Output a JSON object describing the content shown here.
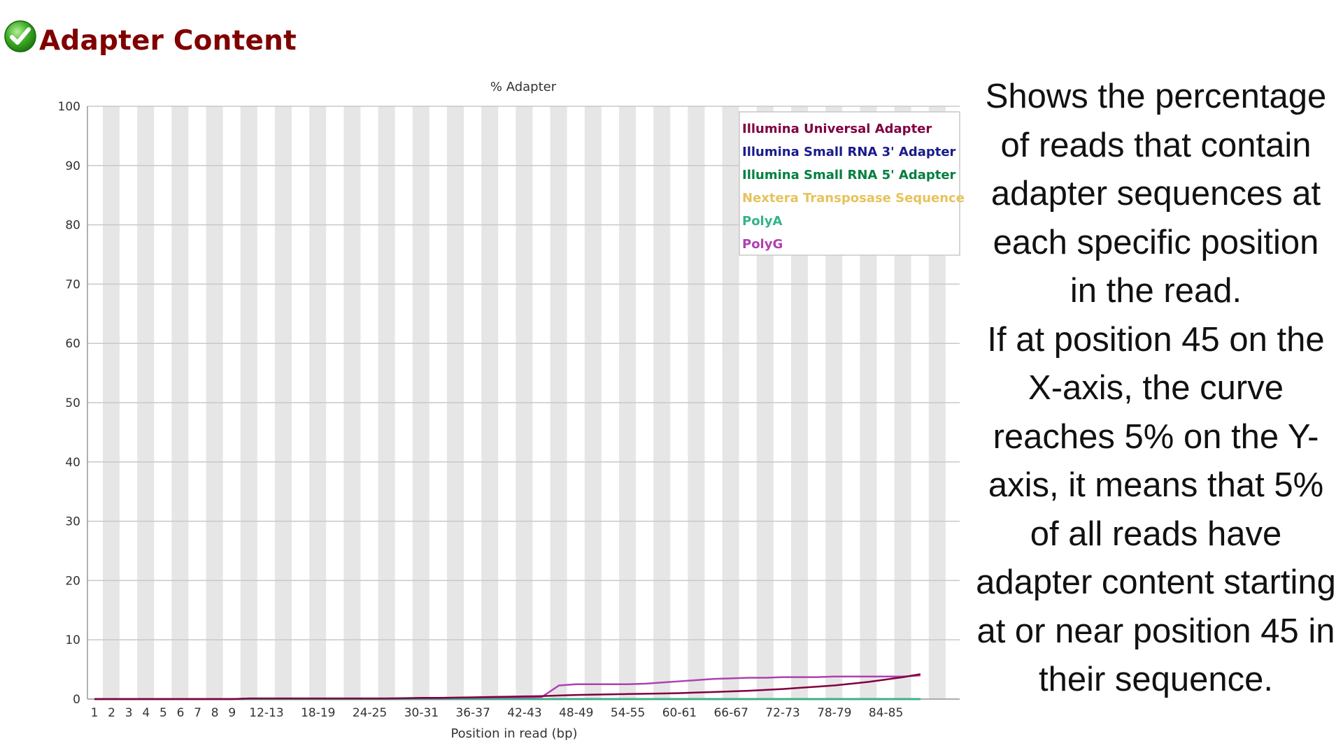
{
  "header": {
    "status_icon": "check-circle-icon",
    "title": "Adapter Content"
  },
  "chart_data": {
    "type": "line",
    "title": "% Adapter",
    "xlabel": "Position in read (bp)",
    "ylabel": "",
    "ylim": [
      0,
      100
    ],
    "yticks": [
      0,
      10,
      20,
      30,
      40,
      50,
      60,
      70,
      80,
      90,
      100
    ],
    "grid": true,
    "legend_position": "top-right",
    "categories": [
      "1",
      "2",
      "3",
      "4",
      "5",
      "6",
      "7",
      "8",
      "9",
      "10-11",
      "12-13",
      "14-15",
      "16-17",
      "18-19",
      "20-21",
      "22-23",
      "24-25",
      "26-27",
      "28-29",
      "30-31",
      "32-33",
      "34-35",
      "36-37",
      "38-39",
      "40-41",
      "42-43",
      "44-45",
      "46-47",
      "48-49",
      "50-51",
      "52-53",
      "54-55",
      "56-57",
      "58-59",
      "60-61",
      "62-63",
      "64-65",
      "66-67",
      "68-69",
      "70-71",
      "72-73",
      "74-75",
      "76-77",
      "78-79",
      "80-81",
      "82-83",
      "84-85",
      "86-87",
      "88-89"
    ],
    "xtick_labels": [
      "1",
      "2",
      "3",
      "4",
      "5",
      "6",
      "7",
      "8",
      "9",
      "12-13",
      "18-19",
      "24-25",
      "30-31",
      "36-37",
      "42-43",
      "48-49",
      "54-55",
      "60-61",
      "66-67",
      "72-73",
      "78-79",
      "84-85"
    ],
    "series": [
      {
        "name": "Illumina Universal Adapter",
        "color": "#800040",
        "values": [
          0,
          0,
          0,
          0,
          0,
          0,
          0,
          0,
          0,
          0.1,
          0.1,
          0.1,
          0.1,
          0.1,
          0.1,
          0.1,
          0.1,
          0.1,
          0.15,
          0.2,
          0.2,
          0.25,
          0.3,
          0.35,
          0.4,
          0.45,
          0.5,
          0.6,
          0.7,
          0.75,
          0.8,
          0.85,
          0.9,
          0.95,
          1.0,
          1.1,
          1.2,
          1.3,
          1.4,
          1.55,
          1.7,
          1.9,
          2.1,
          2.3,
          2.6,
          2.9,
          3.3,
          3.7,
          4.2
        ]
      },
      {
        "name": "Illumina Small RNA 3' Adapter",
        "color": "#1a1a8c",
        "values": [
          0,
          0,
          0,
          0,
          0,
          0,
          0,
          0,
          0,
          0,
          0,
          0,
          0,
          0,
          0,
          0,
          0,
          0,
          0,
          0,
          0,
          0,
          0,
          0,
          0,
          0,
          0,
          0,
          0,
          0,
          0,
          0,
          0,
          0,
          0,
          0,
          0,
          0,
          0,
          0,
          0,
          0,
          0,
          0,
          0,
          0,
          0,
          0,
          0
        ]
      },
      {
        "name": "Illumina Small RNA 5' Adapter",
        "color": "#008040",
        "values": [
          0,
          0,
          0,
          0,
          0,
          0,
          0,
          0,
          0,
          0,
          0,
          0,
          0,
          0,
          0,
          0,
          0,
          0,
          0,
          0,
          0,
          0,
          0,
          0,
          0,
          0,
          0,
          0,
          0,
          0,
          0,
          0,
          0,
          0,
          0,
          0,
          0,
          0,
          0,
          0,
          0,
          0,
          0,
          0,
          0,
          0,
          0,
          0,
          0
        ]
      },
      {
        "name": "Nextera Transposase Sequence",
        "color": "#e6c35c",
        "values": [
          0,
          0,
          0,
          0,
          0,
          0,
          0,
          0,
          0,
          0,
          0,
          0,
          0,
          0,
          0,
          0,
          0,
          0,
          0,
          0,
          0,
          0,
          0,
          0,
          0,
          0,
          0,
          0,
          0,
          0,
          0,
          0,
          0,
          0,
          0,
          0,
          0,
          0,
          0,
          0,
          0,
          0,
          0,
          0,
          0,
          0,
          0,
          0,
          0
        ]
      },
      {
        "name": "PolyA",
        "color": "#33b38c",
        "values": [
          0,
          0,
          0,
          0,
          0,
          0,
          0,
          0,
          0,
          0,
          0,
          0,
          0,
          0,
          0,
          0,
          0,
          0,
          0,
          0,
          0,
          0,
          0,
          0,
          0,
          0,
          0,
          0,
          0,
          0,
          0,
          0,
          0,
          0,
          0,
          0,
          0,
          0,
          0,
          0,
          0,
          0,
          0,
          0,
          0,
          0,
          0,
          0,
          0
        ]
      },
      {
        "name": "PolyG",
        "color": "#b040b0",
        "values": [
          0,
          0,
          0,
          0,
          0,
          0,
          0,
          0,
          0,
          0.1,
          0.1,
          0.1,
          0.1,
          0.1,
          0.1,
          0.1,
          0.1,
          0.1,
          0.15,
          0.15,
          0.15,
          0.2,
          0.25,
          0.25,
          0.3,
          0.3,
          0.35,
          2.3,
          2.5,
          2.5,
          2.5,
          2.5,
          2.6,
          2.8,
          3.0,
          3.2,
          3.4,
          3.5,
          3.6,
          3.6,
          3.7,
          3.7,
          3.7,
          3.8,
          3.8,
          3.8,
          3.8,
          3.8,
          4.0
        ]
      }
    ]
  },
  "description": [
    "Shows the percentage of reads that contain adapter sequences at each specific position in the read.",
    "If at position 45 on the X-axis, the curve reaches 5% on the Y-axis, it means that 5% of all reads have adapter content starting at or near position 45 in their sequence."
  ]
}
